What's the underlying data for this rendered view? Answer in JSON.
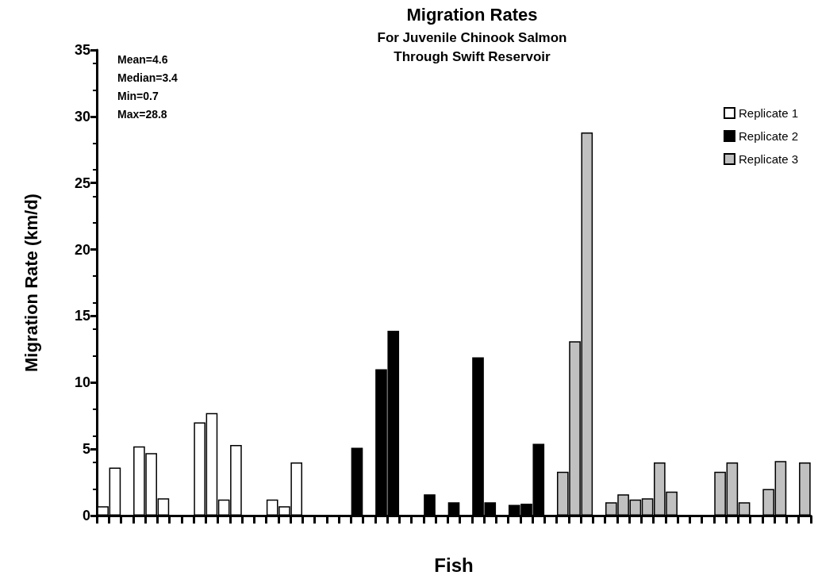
{
  "chart_data": {
    "type": "bar",
    "title": "Migration Rates",
    "subtitle": "For Juvenile Chinook Salmon\nThrough Swift Reservoir",
    "xlabel": "Fish",
    "ylabel": "Migration Rate (km/d)",
    "categories": [
      null,
      null,
      null,
      null,
      null,
      null,
      null,
      null,
      null,
      null,
      null,
      null,
      null,
      null,
      null,
      null,
      null,
      null,
      null,
      null,
      null,
      null,
      null,
      null,
      null,
      null,
      null,
      null,
      null,
      null,
      null,
      null,
      null,
      null,
      null,
      null,
      null,
      null,
      null,
      null,
      null,
      null,
      null,
      null,
      null,
      null,
      null,
      null,
      null,
      null,
      null,
      null,
      null,
      null,
      null,
      null,
      null,
      null,
      null
    ],
    "series": [
      {
        "name": "Replicate 1",
        "color": "#ffffff",
        "values": [
          0.7,
          3.6,
          null,
          5.2,
          4.7,
          1.3,
          null,
          null,
          7.0,
          7.7,
          1.2,
          5.3,
          null,
          null,
          1.2,
          0.7,
          4.0,
          null,
          null,
          null,
          null,
          null,
          null,
          null,
          null,
          null,
          null,
          null,
          null,
          null,
          null,
          null,
          null,
          null,
          null,
          null,
          null,
          null,
          null,
          null,
          null,
          null,
          null,
          null,
          null,
          null,
          null,
          null,
          null,
          null,
          null,
          null,
          null,
          null,
          null,
          null,
          null,
          null,
          null
        ]
      },
      {
        "name": "Replicate 2",
        "color": "#000000",
        "values": [
          null,
          null,
          null,
          null,
          null,
          null,
          null,
          null,
          null,
          null,
          null,
          null,
          null,
          null,
          null,
          null,
          null,
          null,
          null,
          null,
          null,
          5.1,
          null,
          11.0,
          13.9,
          null,
          null,
          1.6,
          null,
          1.0,
          null,
          11.9,
          1.0,
          null,
          0.8,
          0.9,
          5.4,
          null,
          null,
          null,
          null,
          null,
          null,
          null,
          null,
          null,
          null,
          null,
          null,
          null,
          null,
          null,
          null,
          null,
          null,
          null,
          null,
          null,
          null
        ]
      },
      {
        "name": "Replicate 3",
        "color": "#c0c0c0",
        "values": [
          null,
          null,
          null,
          null,
          null,
          null,
          null,
          null,
          null,
          null,
          null,
          null,
          null,
          null,
          null,
          null,
          null,
          null,
          null,
          null,
          null,
          null,
          null,
          null,
          null,
          null,
          null,
          null,
          null,
          null,
          null,
          null,
          null,
          null,
          null,
          null,
          null,
          null,
          3.3,
          13.1,
          28.8,
          null,
          1.0,
          1.6,
          1.2,
          1.3,
          4.0,
          1.8,
          null,
          null,
          null,
          3.3,
          4.0,
          1.0,
          null,
          2.0,
          4.1,
          null,
          4.0
        ]
      }
    ],
    "ylim": [
      0,
      35
    ],
    "yticks": [
      0,
      5,
      10,
      15,
      20,
      25,
      30,
      35
    ],
    "grid": false,
    "legend": "top right",
    "annotations": [
      "Mean=4.6",
      "Median=3.4",
      "Min=0.7",
      "Max=28.8"
    ]
  }
}
